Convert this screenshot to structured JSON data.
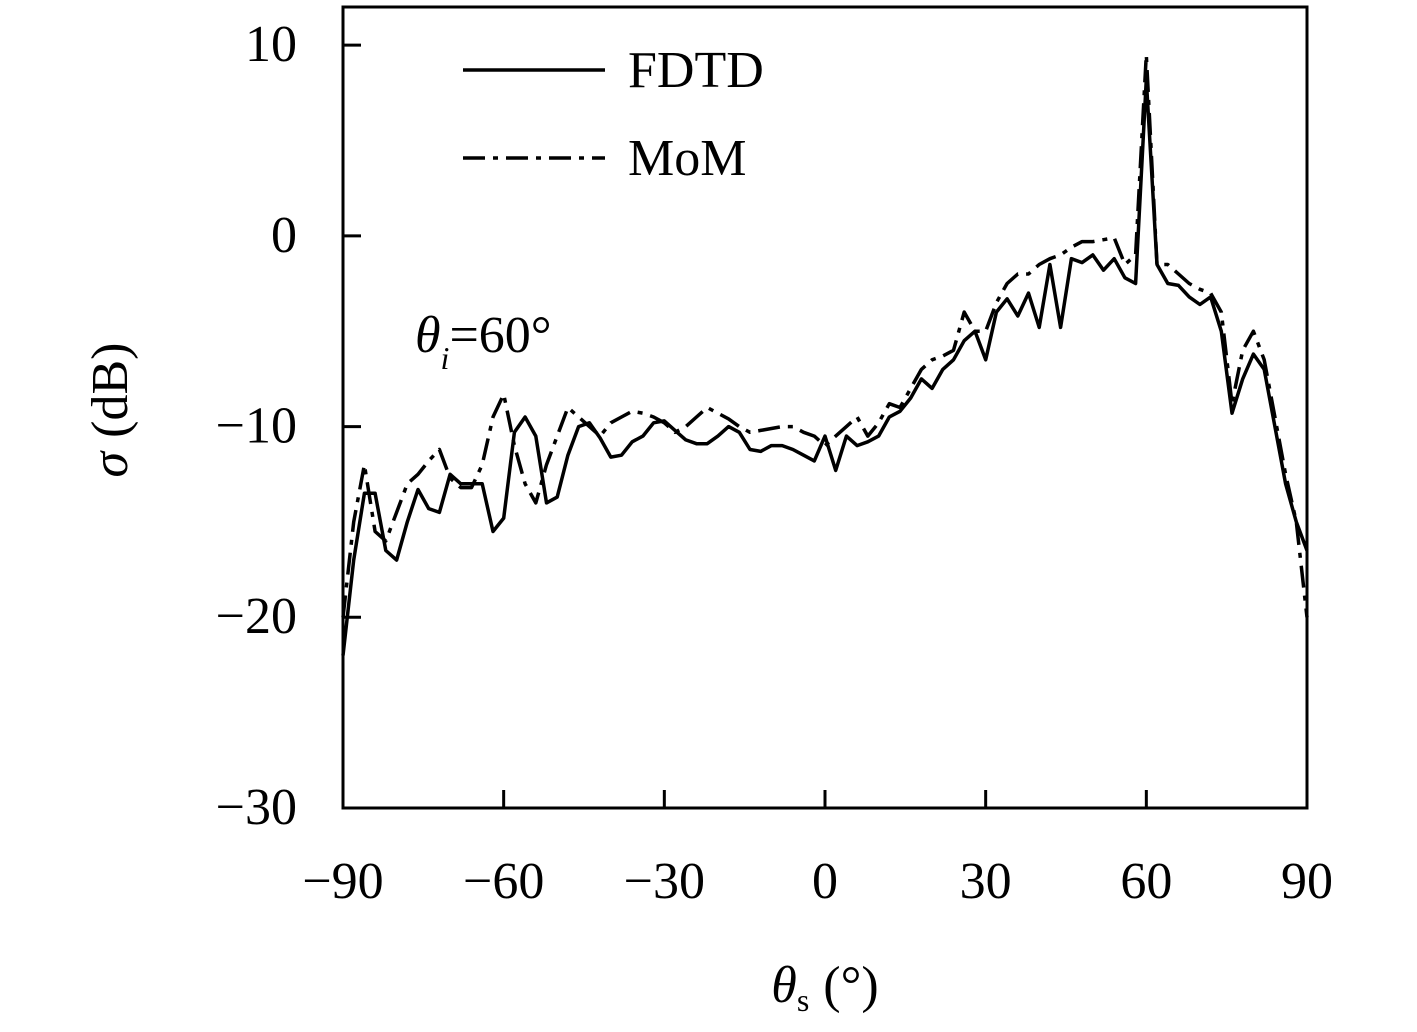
{
  "chart_data": {
    "type": "line",
    "xlabel": {
      "symbol": "θ",
      "subscript": "s",
      "unit": "(°)"
    },
    "ylabel": {
      "symbol": "σ",
      "unit": "(dB)"
    },
    "annotation": {
      "symbol": "θ",
      "subscript": "i",
      "text": "=60°"
    },
    "x": [
      -90,
      -88,
      -86,
      -84,
      -82,
      -80,
      -78,
      -76,
      -74,
      -72,
      -70,
      -68,
      -66,
      -64,
      -62,
      -60,
      -58,
      -56,
      -54,
      -52,
      -50,
      -48,
      -46,
      -44,
      -42,
      -40,
      -38,
      -36,
      -34,
      -32,
      -30,
      -28,
      -26,
      -24,
      -22,
      -20,
      -18,
      -16,
      -14,
      -12,
      -10,
      -8,
      -6,
      -4,
      -2,
      0,
      2,
      4,
      6,
      8,
      10,
      12,
      14,
      16,
      18,
      20,
      22,
      24,
      26,
      28,
      30,
      32,
      34,
      36,
      38,
      40,
      42,
      44,
      46,
      48,
      50,
      52,
      54,
      56,
      58,
      60,
      62,
      64,
      66,
      68,
      70,
      72,
      74,
      76,
      78,
      80,
      82,
      84,
      86,
      88,
      90
    ],
    "series": [
      {
        "name": "FDTD",
        "color": "#000000",
        "dash": "solid",
        "values": [
          -22,
          -17,
          -13.5,
          -13.5,
          -16.5,
          -17,
          -15,
          -13.3,
          -14.3,
          -14.5,
          -12.5,
          -13,
          -13,
          -13,
          -15.5,
          -14.8,
          -10.3,
          -9.5,
          -10.5,
          -14,
          -13.7,
          -11.5,
          -10,
          -9.8,
          -10.6,
          -11.6,
          -11.5,
          -10.8,
          -10.5,
          -9.8,
          -9.7,
          -10.2,
          -10.7,
          -10.9,
          -10.9,
          -10.5,
          -10,
          -10.3,
          -11.2,
          -11.3,
          -11,
          -11,
          -11.2,
          -11.5,
          -11.8,
          -10.5,
          -12.3,
          -10.5,
          -11,
          -10.8,
          -10.5,
          -9.5,
          -9.2,
          -8.5,
          -7.5,
          -8,
          -7,
          -6.5,
          -5.5,
          -5,
          -6.5,
          -4,
          -3.3,
          -4.2,
          -3,
          -4.8,
          -1.5,
          -4.8,
          -1.2,
          -1.4,
          -1,
          -1.8,
          -1.2,
          -2.2,
          -2.5,
          8.2,
          -1.5,
          -2.5,
          -2.6,
          -3.2,
          -3.6,
          -3.2,
          -5,
          -9.3,
          -7.5,
          -6.2,
          -7,
          -10,
          -13,
          -15,
          -16.5
        ]
      },
      {
        "name": "MoM",
        "color": "#000000",
        "dash": "dashdot",
        "values": [
          -20,
          -15,
          -12,
          -15.5,
          -16,
          -14.5,
          -13,
          -12.5,
          -11.8,
          -11.2,
          -12.7,
          -13.2,
          -13.2,
          -12,
          -9.5,
          -8.3,
          -11,
          -13,
          -14,
          -12,
          -10.5,
          -9,
          -9.5,
          -10,
          -10.5,
          -9.8,
          -9.5,
          -9.2,
          -9.3,
          -9.5,
          -9.8,
          -10.3,
          -10,
          -9.5,
          -9,
          -9.3,
          -9.6,
          -10,
          -10.3,
          -10.2,
          -10.1,
          -10,
          -10,
          -10.3,
          -10.5,
          -11,
          -10.5,
          -10,
          -9.5,
          -10.5,
          -9.8,
          -8.8,
          -9,
          -8,
          -7,
          -6.5,
          -6.3,
          -6,
          -4,
          -5,
          -5,
          -3.5,
          -2.5,
          -2,
          -2,
          -1.5,
          -1.2,
          -1,
          -0.6,
          -0.3,
          -0.3,
          -0.2,
          -0.1,
          -1.5,
          -1,
          9.5,
          -1.5,
          -1.5,
          -2,
          -2.5,
          -2.8,
          -3,
          -4,
          -8.8,
          -6,
          -5,
          -6.5,
          -9.5,
          -12.5,
          -15,
          -20
        ]
      }
    ],
    "xlim": [
      -90,
      90
    ],
    "xticks": [
      {
        "value": -90,
        "label": "−90"
      },
      {
        "value": -60,
        "label": "−60"
      },
      {
        "value": -30,
        "label": "−30"
      },
      0,
      30,
      60,
      90
    ],
    "ylim": [
      -30,
      12
    ],
    "yticks": [
      {
        "value": -30,
        "label": "−30"
      },
      {
        "value": -20,
        "label": "−20"
      },
      {
        "value": -10,
        "label": "−10"
      },
      0,
      10
    ],
    "grid": false,
    "legend": "upper left"
  }
}
